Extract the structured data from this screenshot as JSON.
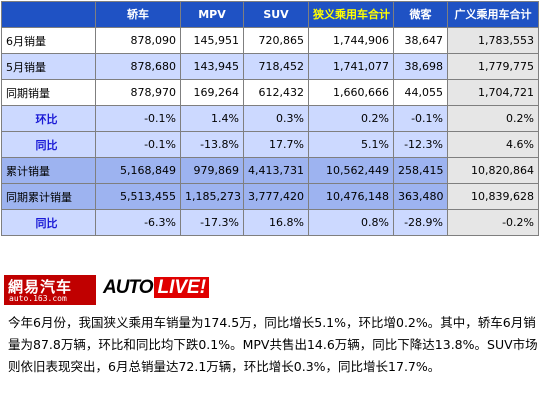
{
  "table": {
    "headers": [
      "轿车",
      "MPV",
      "SUV",
      "狭义乘用车合计",
      "微客",
      "广义乘用车合计"
    ],
    "rows": [
      {
        "label": "6月销量",
        "values": [
          "878,090",
          "145,951",
          "720,865",
          "1,744,906",
          "38,647",
          "1,783,553"
        ]
      },
      {
        "label": "5月销量",
        "values": [
          "878,680",
          "143,945",
          "718,452",
          "1,741,077",
          "38,698",
          "1,779,775"
        ]
      },
      {
        "label": "同期销量",
        "values": [
          "878,970",
          "169,264",
          "612,432",
          "1,660,666",
          "44,055",
          "1,704,721"
        ]
      },
      {
        "label": "环比",
        "values": [
          "-0.1%",
          "1.4%",
          "0.3%",
          "0.2%",
          "-0.1%",
          "0.2%"
        ]
      },
      {
        "label": "同比",
        "values": [
          "-0.1%",
          "-13.8%",
          "17.7%",
          "5.1%",
          "-12.3%",
          "4.6%"
        ]
      },
      {
        "label": "累计销量",
        "values": [
          "5,168,849",
          "979,869",
          "4,413,731",
          "10,562,449",
          "258,415",
          "10,820,864"
        ]
      },
      {
        "label": "同期累计销量",
        "values": [
          "5,513,455",
          "1,185,273",
          "3,777,420",
          "10,476,148",
          "363,480",
          "10,839,628"
        ]
      },
      {
        "label": "同比",
        "values": [
          "-6.3%",
          "-17.3%",
          "16.8%",
          "0.8%",
          "-28.9%",
          "-0.2%"
        ]
      }
    ]
  },
  "logos": {
    "netease_text": "網易汽车",
    "netease_sub": "auto.163.com",
    "auto_text": "AUTO",
    "live_text": "LIVE!"
  },
  "article": {
    "text": "今年6月份，我国狭义乘用车销量为174.5万，同比增长5.1%，环比增0.2%。其中，轿车6月销量为87.8万辆，环比和同比均下跌0.1%。MPV共售出14.6万辆，同比下降达13.8%。SUV市场则依旧表现突出，6月总销量达72.1万辆，环比增长0.3%，同比增长17.7%。"
  },
  "colors": {
    "header_bg": "#1f52c4",
    "highlight_header": "#ffff00",
    "positive": "#e00000",
    "negative": "#00a000"
  }
}
